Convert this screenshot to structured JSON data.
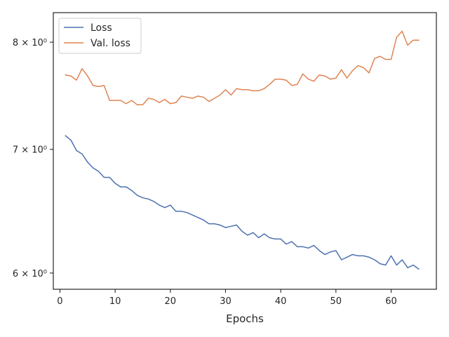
{
  "chart_data": {
    "type": "line",
    "xlabel": "Epochs",
    "ylabel": "",
    "xlim": [
      -1.2,
      68.2
    ],
    "ylim": [
      5.88,
      8.3
    ],
    "yscale": "log",
    "grid": false,
    "legend_position": "top-left",
    "x_ticks": [
      0,
      10,
      20,
      30,
      40,
      50,
      60
    ],
    "x_tick_labels": [
      "0",
      "10",
      "20",
      "30",
      "40",
      "50",
      "60"
    ],
    "y_ticks": [
      6,
      7,
      8
    ],
    "y_tick_labels": [
      "6 × 10⁰",
      "7 × 10⁰",
      "8 × 10⁰"
    ],
    "x": [
      1,
      2,
      3,
      4,
      5,
      6,
      7,
      8,
      9,
      10,
      11,
      12,
      13,
      14,
      15,
      16,
      17,
      18,
      19,
      20,
      21,
      22,
      23,
      24,
      25,
      26,
      27,
      28,
      29,
      30,
      31,
      32,
      33,
      34,
      35,
      36,
      37,
      38,
      39,
      40,
      41,
      42,
      43,
      44,
      45,
      46,
      47,
      48,
      49,
      50,
      51,
      52,
      53,
      54,
      55,
      56,
      57,
      58,
      59,
      60,
      61,
      62,
      63,
      64,
      65
    ],
    "series": [
      {
        "name": "Loss",
        "color": "#4c72b0",
        "values": [
          7.12,
          7.08,
          6.99,
          6.96,
          6.89,
          6.84,
          6.81,
          6.76,
          6.76,
          6.71,
          6.68,
          6.68,
          6.65,
          6.61,
          6.59,
          6.58,
          6.56,
          6.53,
          6.51,
          6.53,
          6.48,
          6.48,
          6.47,
          6.45,
          6.43,
          6.41,
          6.38,
          6.38,
          6.37,
          6.35,
          6.36,
          6.37,
          6.32,
          6.29,
          6.31,
          6.27,
          6.3,
          6.27,
          6.26,
          6.26,
          6.22,
          6.24,
          6.2,
          6.2,
          6.19,
          6.21,
          6.17,
          6.14,
          6.16,
          6.17,
          6.1,
          6.12,
          6.14,
          6.13,
          6.13,
          6.12,
          6.1,
          6.07,
          6.06,
          6.13,
          6.06,
          6.1,
          6.04,
          6.06,
          6.03
        ]
      },
      {
        "name": "Val. loss",
        "color": "#dd8452",
        "values": [
          7.68,
          7.67,
          7.63,
          7.74,
          7.67,
          7.58,
          7.57,
          7.58,
          7.44,
          7.44,
          7.44,
          7.41,
          7.44,
          7.4,
          7.4,
          7.46,
          7.45,
          7.42,
          7.45,
          7.41,
          7.42,
          7.48,
          7.47,
          7.46,
          7.48,
          7.47,
          7.43,
          7.46,
          7.49,
          7.54,
          7.49,
          7.55,
          7.54,
          7.54,
          7.53,
          7.53,
          7.55,
          7.59,
          7.64,
          7.64,
          7.63,
          7.58,
          7.59,
          7.69,
          7.64,
          7.62,
          7.68,
          7.67,
          7.64,
          7.65,
          7.73,
          7.65,
          7.72,
          7.77,
          7.75,
          7.7,
          7.84,
          7.86,
          7.83,
          7.83,
          8.05,
          8.11,
          7.97,
          8.02,
          8.02
        ]
      }
    ]
  }
}
